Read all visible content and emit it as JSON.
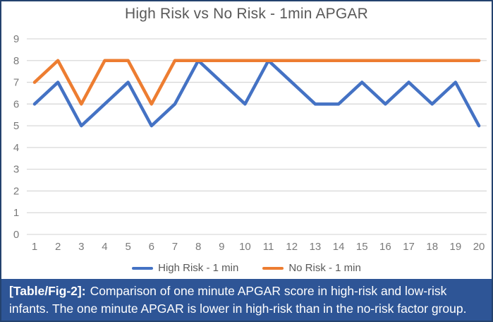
{
  "chart_data": {
    "type": "line",
    "title": "High Risk vs No Risk - 1min APGAR",
    "x": [
      1,
      2,
      3,
      4,
      5,
      6,
      7,
      8,
      9,
      10,
      11,
      12,
      13,
      14,
      15,
      16,
      17,
      18,
      19,
      20
    ],
    "xlabel": "",
    "ylabel": "",
    "ylim": [
      0,
      9
    ],
    "yticks": [
      0,
      1,
      2,
      3,
      4,
      5,
      6,
      7,
      8,
      9
    ],
    "grid": true,
    "legend_position": "bottom",
    "series": [
      {
        "name": "High Risk - 1 min",
        "color": "#4472C4",
        "values": [
          6,
          7,
          5,
          6,
          7,
          5,
          6,
          8,
          7,
          6,
          8,
          7,
          6,
          6,
          7,
          6,
          7,
          6,
          7,
          5
        ]
      },
      {
        "name": "No Risk - 1 min",
        "color": "#ED7D31",
        "values": [
          7,
          8,
          6,
          8,
          8,
          6,
          8,
          8,
          8,
          8,
          8,
          8,
          8,
          8,
          8,
          8,
          8,
          8,
          8,
          8
        ]
      }
    ]
  },
  "caption": {
    "label": "[Table/Fig-2]:",
    "text": "Comparison of one minute APGAR score in high-risk and low-risk infants. The one minute APGAR is lower in high-risk than in the no-risk factor group."
  },
  "colors": {
    "high_risk_line": "#4472C4",
    "no_risk_line": "#ED7D31",
    "gridline": "#D9D9D9",
    "axis_text": "#7A7A7A",
    "title_text": "#595959",
    "frame_border": "#24426E",
    "caption_bg": "#2E5596",
    "caption_text": "#FFFFFF"
  }
}
